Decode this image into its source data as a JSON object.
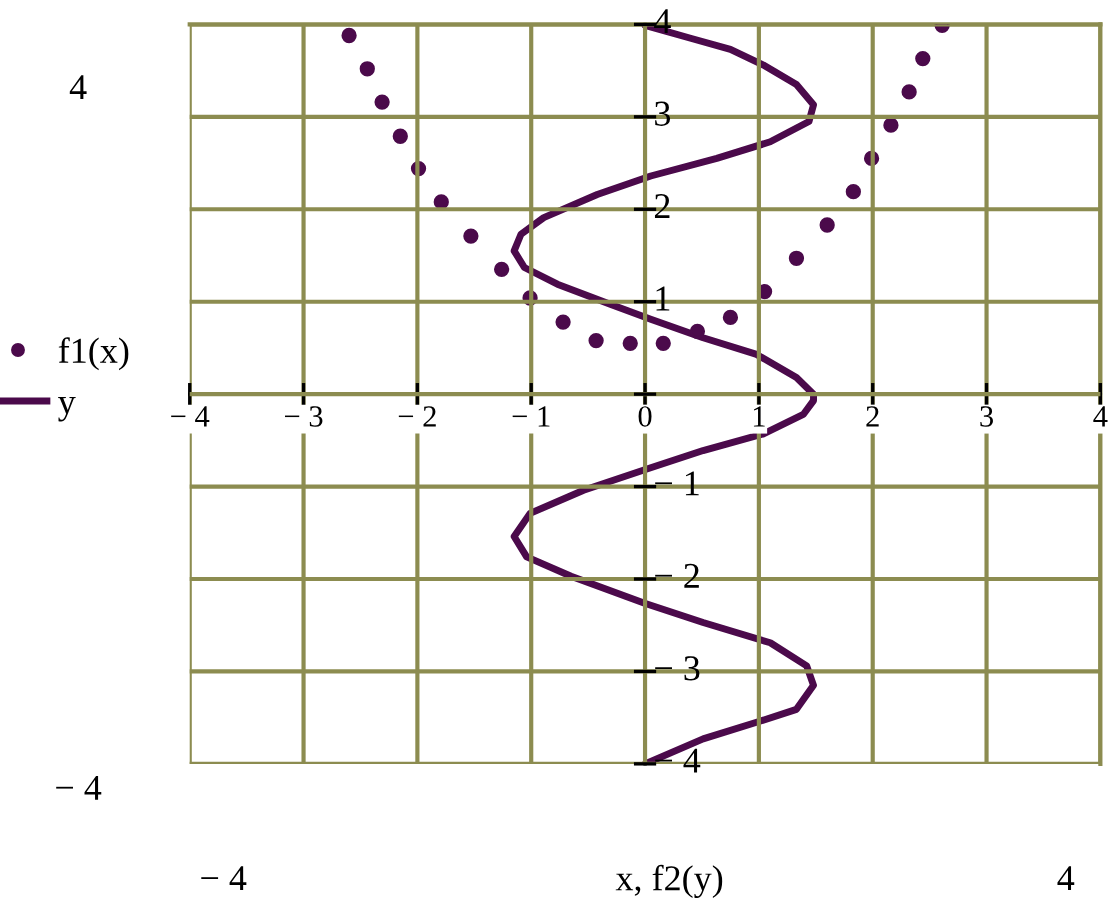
{
  "chart_data": {
    "type": "line",
    "xlabel": "x, f2(y)",
    "xlim": [
      -4,
      4
    ],
    "ylim": [
      -4,
      4
    ],
    "xticks": [
      {
        "value": -4,
        "label": "− 4"
      },
      {
        "value": -3,
        "label": "− 3"
      },
      {
        "value": -2,
        "label": "− 2"
      },
      {
        "value": -1,
        "label": "− 1"
      },
      0,
      1,
      2,
      3,
      4
    ],
    "yticks": [
      {
        "value": -4,
        "label": "− 4"
      },
      {
        "value": -3,
        "label": "− 3"
      },
      {
        "value": -2,
        "label": "− 2"
      },
      {
        "value": -1,
        "label": "− 1"
      },
      {
        "value": 0,
        "label": null
      },
      1,
      2,
      3,
      4
    ],
    "grid": true,
    "legend": "left",
    "annotations": [
      "4",
      "− 4",
      "− 4",
      "4"
    ],
    "series": [
      {
        "name": "f1(x)",
        "type": "scatter",
        "marker": "circle",
        "color": "#4b0a4b",
        "x": [
          -2.6,
          -2.44,
          -2.31,
          -2.15,
          -1.99,
          -1.79,
          -1.53,
          -1.26,
          -1.01,
          -0.72,
          -0.43,
          -0.13,
          0.16,
          0.46,
          0.75,
          1.05,
          1.33,
          1.6,
          1.83,
          1.99,
          2.16,
          2.32,
          2.44,
          2.61
        ],
        "values": [
          3.88,
          3.52,
          3.16,
          2.79,
          2.44,
          2.08,
          1.71,
          1.35,
          1.04,
          0.78,
          0.58,
          0.55,
          0.55,
          0.68,
          0.83,
          1.11,
          1.47,
          1.83,
          2.19,
          2.55,
          2.91,
          3.27,
          3.63,
          3.99
        ]
      },
      {
        "name": "y",
        "marker": "none",
        "line_style": "solid",
        "color": "#4b0a4b",
        "x": [
          0,
          0.4,
          0.75,
          1.04,
          1.33,
          1.48,
          1.44,
          1.1,
          0.63,
          0.05,
          -0.42,
          -0.89,
          -1.09,
          -1.15,
          -1.06,
          -0.77,
          -0.3,
          0.05,
          0.51,
          0.98,
          1.33,
          1.48,
          1.48,
          1.39,
          1.04,
          0.51,
          -0.01,
          -0.54,
          -1.01,
          -1.15,
          -1.04,
          -0.65,
          -0.01,
          0.51,
          1.1,
          1.42,
          1.48,
          1.33,
          0.98,
          0.51,
          0
        ],
        "values": [
          3.99,
          3.85,
          3.73,
          3.56,
          3.35,
          3.13,
          2.95,
          2.73,
          2.55,
          2.36,
          2.16,
          1.91,
          1.73,
          1.55,
          1.37,
          1.19,
          0.97,
          0.81,
          0.61,
          0.43,
          0.18,
          0,
          -0.07,
          -0.22,
          -0.43,
          -0.61,
          -0.82,
          -1.04,
          -1.29,
          -1.54,
          -1.76,
          -1.97,
          -2.26,
          -2.47,
          -2.69,
          -2.94,
          -3.15,
          -3.41,
          -3.55,
          -3.73,
          -4.0
        ]
      }
    ]
  }
}
